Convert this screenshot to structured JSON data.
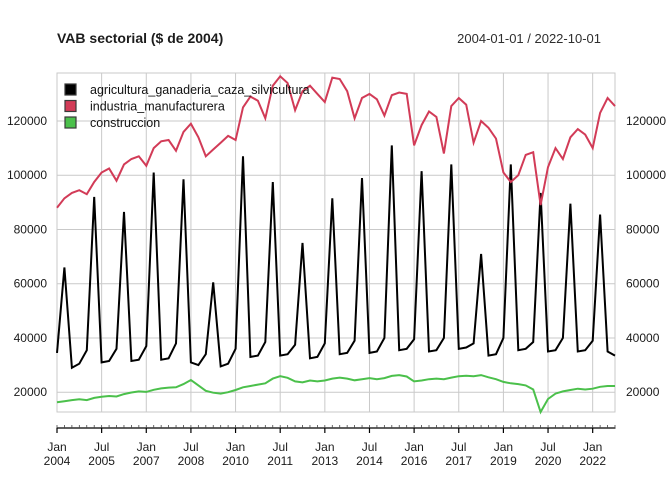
{
  "header": {
    "title": "VAB sectorial ($ de 2004)",
    "date_range": "2004-01-01 / 2022-10-01"
  },
  "chart_data": {
    "type": "line",
    "title": "VAB sectorial ($ de 2004)",
    "subtitle_right": "2004-01-01 / 2022-10-01",
    "frequency": "quarterly",
    "x_start": "2004 Q1",
    "x_end": "2022 Q4",
    "grid": true,
    "legend_position": "topleft",
    "ylim": [
      12700,
      137700
    ],
    "y_ticks": [
      20000,
      40000,
      60000,
      80000,
      100000,
      120000
    ],
    "x_tick_labels": [
      [
        "Jan",
        "2004"
      ],
      [
        "Jul",
        "2005"
      ],
      [
        "Jan",
        "2007"
      ],
      [
        "Jul",
        "2008"
      ],
      [
        "Jan",
        "2010"
      ],
      [
        "Jul",
        "2011"
      ],
      [
        "Jan",
        "2013"
      ],
      [
        "Jul",
        "2014"
      ],
      [
        "Jan",
        "2016"
      ],
      [
        "Jul",
        "2017"
      ],
      [
        "Jan",
        "2019"
      ],
      [
        "Jul",
        "2020"
      ],
      [
        "Jan",
        "2022"
      ]
    ],
    "x_tick_indices": [
      0,
      6,
      12,
      18,
      24,
      30,
      36,
      42,
      48,
      54,
      60,
      66,
      72
    ],
    "series": [
      {
        "name": "agricultura_ganaderia_caza_silvicultura",
        "color": "#000000",
        "values": [
          34500,
          66000,
          29000,
          30500,
          35500,
          92000,
          31000,
          31500,
          36000,
          86500,
          31500,
          32000,
          37000,
          101000,
          32000,
          32500,
          38000,
          98500,
          31000,
          30000,
          34000,
          60500,
          29500,
          30500,
          36000,
          107000,
          33000,
          33500,
          38500,
          97500,
          33500,
          34000,
          37500,
          75000,
          32500,
          33000,
          38000,
          91500,
          34000,
          34500,
          39000,
          99000,
          34500,
          35000,
          40000,
          111000,
          35500,
          36000,
          39500,
          101500,
          35000,
          35500,
          40000,
          104000,
          36000,
          36500,
          38000,
          71000,
          33500,
          34000,
          40000,
          104000,
          35500,
          36000,
          38500,
          93500,
          35000,
          35500,
          40000,
          89500,
          35000,
          35500,
          39000,
          85500,
          35000,
          33500
        ]
      },
      {
        "name": "industria_manufacturera",
        "color": "#d23b57",
        "values": [
          88000,
          91500,
          93500,
          94500,
          93000,
          97500,
          101000,
          102500,
          98000,
          104000,
          106000,
          107000,
          103500,
          110000,
          112500,
          113000,
          109000,
          116000,
          119000,
          114000,
          107000,
          109500,
          112000,
          114500,
          113000,
          125000,
          129000,
          127500,
          121000,
          133000,
          136500,
          134000,
          124000,
          131000,
          133000,
          130000,
          127000,
          136000,
          135500,
          131000,
          121000,
          128500,
          130000,
          128000,
          122000,
          129500,
          130500,
          130000,
          111000,
          118500,
          123500,
          121500,
          108000,
          125500,
          128500,
          126000,
          112000,
          120000,
          117500,
          113500,
          101000,
          97500,
          100000,
          107500,
          108500,
          89000,
          103000,
          110000,
          106000,
          114000,
          117000,
          115000,
          110000,
          123000,
          128500,
          125500
        ]
      },
      {
        "name": "construccion",
        "color": "#4bc04b",
        "values": [
          16300,
          16700,
          17100,
          17400,
          17100,
          17900,
          18300,
          18600,
          18400,
          19300,
          19900,
          20300,
          20100,
          20900,
          21400,
          21700,
          21800,
          23000,
          24500,
          22500,
          20500,
          19800,
          19500,
          20000,
          20800,
          21800,
          22300,
          22800,
          23300,
          25000,
          25900,
          25300,
          24000,
          23600,
          24300,
          24000,
          24300,
          25000,
          25400,
          25000,
          24400,
          24800,
          25200,
          24800,
          25200,
          26000,
          26300,
          25800,
          24000,
          24300,
          24800,
          25000,
          24800,
          25400,
          25900,
          26100,
          25900,
          26300,
          25500,
          24800,
          23800,
          23300,
          23000,
          22500,
          21000,
          12700,
          17500,
          19500,
          20300,
          20800,
          21300,
          21000,
          21300,
          22000,
          22300,
          22300
        ]
      }
    ]
  }
}
